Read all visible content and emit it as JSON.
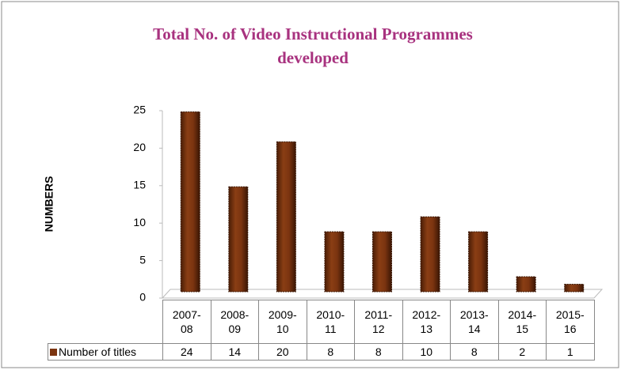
{
  "chart_data": {
    "type": "bar",
    "title": "Total No. of Video Instructional  Programmes developed",
    "y_label": "NUMBERS",
    "categories": [
      "2007-08",
      "2008-09",
      "2009-10",
      "2010-11",
      "2011-12",
      "2012-13",
      "2013-14",
      "2014-15",
      "2015-16"
    ],
    "series": [
      {
        "name": "Number of titles",
        "color": "#7b3410",
        "values": [
          24,
          14,
          20,
          8,
          8,
          10,
          8,
          2,
          1
        ]
      }
    ],
    "ylim": [
      0,
      25
    ],
    "yticks": [
      0,
      5,
      10,
      15,
      20,
      25
    ],
    "grid": false
  }
}
